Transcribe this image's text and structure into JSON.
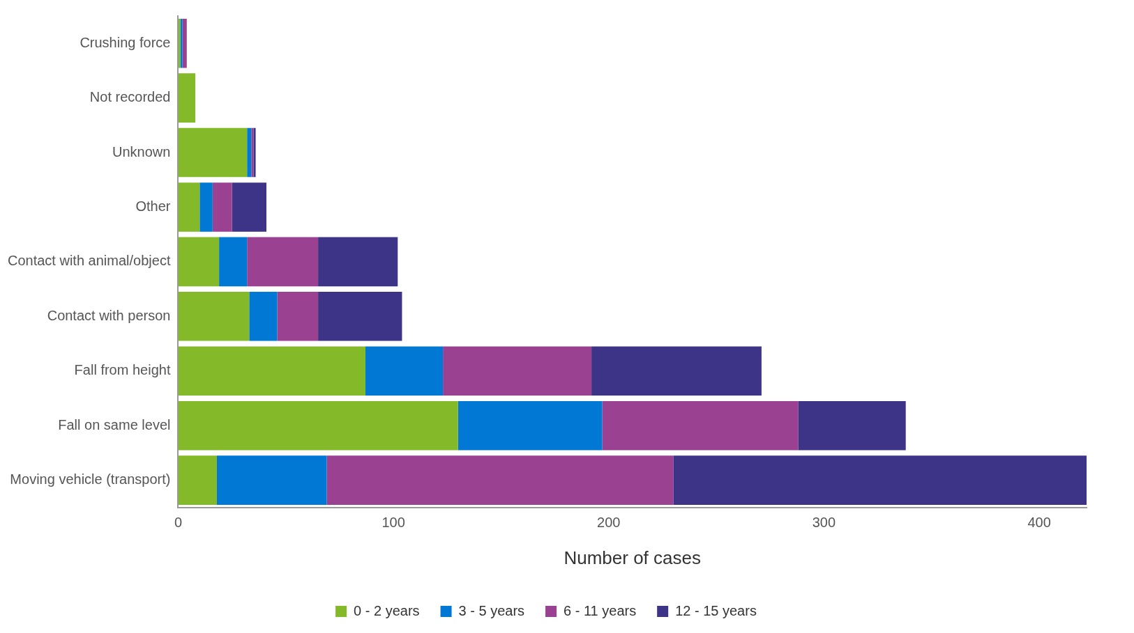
{
  "chart_data": {
    "type": "bar",
    "orientation": "horizontal",
    "stacked": true,
    "xlabel": "Number of cases",
    "categories": [
      "Crushing force",
      "Not recorded",
      "Unknown",
      "Other",
      "Contact with animal/object",
      "Contact with person",
      "Fall from height",
      "Fall on same level",
      "Moving vehicle (transport)"
    ],
    "series": [
      {
        "name": "0 - 2 years",
        "color": "#84b92a",
        "values": [
          1,
          8,
          32,
          10,
          19,
          33,
          87,
          130,
          18
        ]
      },
      {
        "name": "3 - 5 years",
        "color": "#0078d4",
        "values": [
          1,
          0,
          2,
          6,
          13,
          13,
          36,
          67,
          51
        ]
      },
      {
        "name": "6 - 11 years",
        "color": "#9a4191",
        "values": [
          2,
          0,
          1,
          9,
          33,
          19,
          69,
          91,
          161
        ]
      },
      {
        "name": "12 - 15 years",
        "color": "#3e3487",
        "values": [
          0,
          0,
          1,
          16,
          37,
          39,
          79,
          50,
          192
        ]
      }
    ],
    "xlim": [
      0,
      422
    ],
    "xticks": [
      0,
      100,
      200,
      300,
      400
    ],
    "grid": false,
    "legend": "bottom"
  }
}
